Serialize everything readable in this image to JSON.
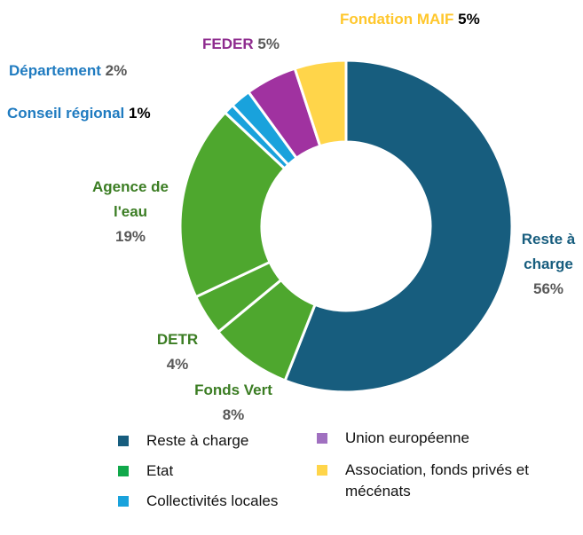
{
  "chart_data": {
    "type": "donut",
    "categories": [
      "Reste à charge",
      "Fonds Vert",
      "DETR",
      "Agence de l'eau",
      "Conseil régional",
      "Département",
      "FEDER",
      "Fondation MAIF"
    ],
    "values": [
      56,
      8,
      4,
      19,
      1,
      2,
      5,
      5
    ],
    "value_labels": [
      "56%",
      "8%",
      "4%",
      "19%",
      "1%",
      "2%",
      "5%",
      "5%"
    ],
    "colors": [
      "#175d7e",
      "#4ea72e",
      "#4ea72e",
      "#4ea72e",
      "#19a2dc",
      "#19a2dc",
      "#a032a0",
      "#ffd54a"
    ],
    "label_colors": [
      "#175d7e",
      "#3b7d23",
      "#3b7d23",
      "#3b7d23",
      "#1f7bc0",
      "#1f7bc0",
      "#8e2b8e",
      "#ffc72c"
    ],
    "value_label_colors": [
      "#595959",
      "#595959",
      "#595959",
      "#595959",
      "#000000",
      "#595959",
      "#595959",
      "#000000"
    ],
    "legend": [
      {
        "name": "Reste à charge",
        "color": "#175d7e"
      },
      {
        "name": "Etat",
        "color": "#10a84a"
      },
      {
        "name": "Collectivités locales",
        "color": "#19a2dc"
      },
      {
        "name": "Union européenne",
        "color": "#a070c0"
      },
      {
        "name": "Association, fonds privés et mécénats",
        "color": "#ffd54a"
      }
    ]
  }
}
